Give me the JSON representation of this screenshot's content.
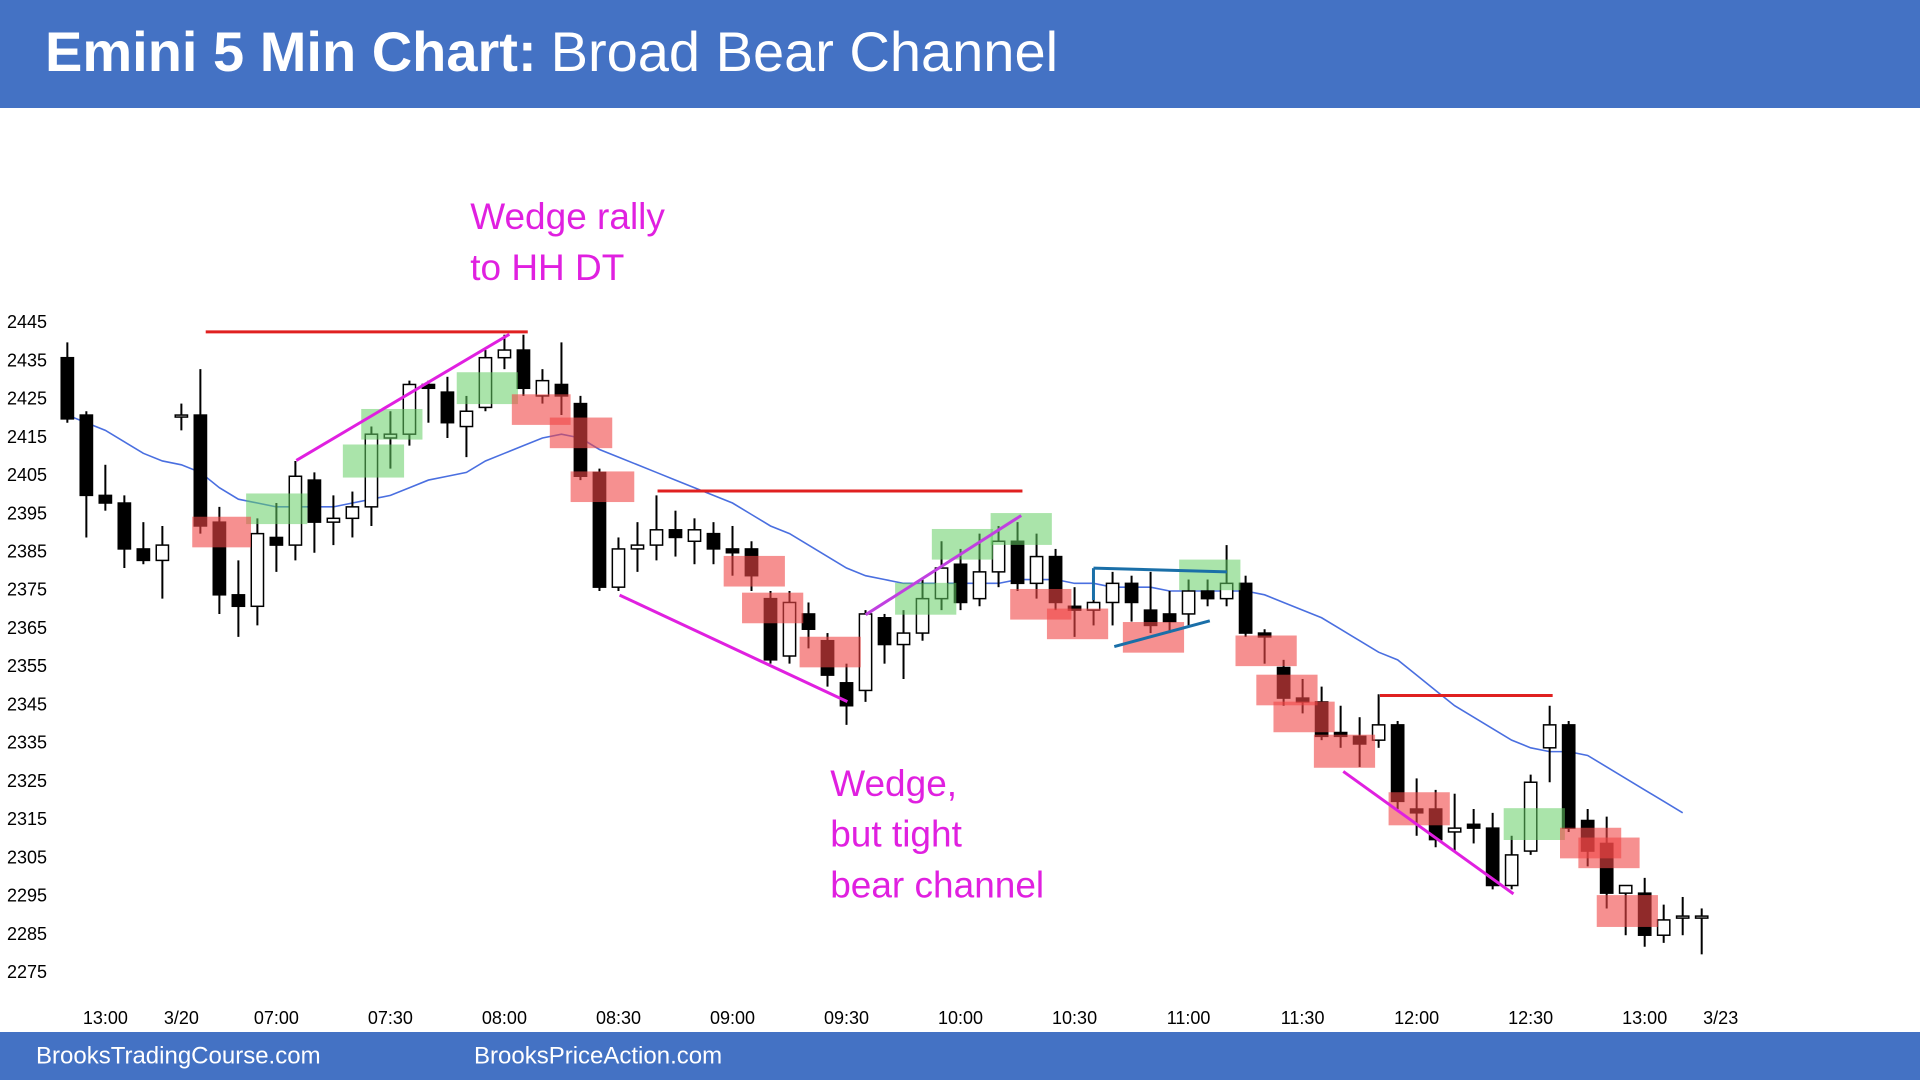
{
  "chart_data": {
    "type": "candlestick",
    "title": "Emini 5 Min Chart:",
    "subtitle": "Broad Bear Channel",
    "categories": [
      null,
      null,
      "13:00",
      null,
      null,
      null,
      "3/20",
      null,
      null,
      null,
      null,
      "07:00",
      null,
      null,
      null,
      null,
      null,
      "07:30",
      null,
      null,
      null,
      null,
      null,
      "08:00",
      null,
      null,
      null,
      null,
      null,
      "08:30",
      null,
      null,
      null,
      null,
      null,
      "09:00",
      null,
      null,
      null,
      null,
      null,
      "09:30",
      null,
      null,
      null,
      null,
      null,
      "10:00",
      null,
      null,
      null,
      null,
      null,
      "10:30",
      null,
      null,
      null,
      null,
      null,
      "11:00",
      null,
      null,
      null,
      null,
      null,
      "11:30",
      null,
      null,
      null,
      null,
      null,
      "12:00",
      null,
      null,
      null,
      null,
      null,
      "12:30",
      null,
      null,
      null,
      null,
      null,
      "13:00",
      null,
      null,
      null,
      "3/23"
    ],
    "open": [
      2436,
      2421,
      2400,
      2398,
      2386,
      2383,
      2421,
      2421,
      2393,
      2374,
      2371,
      2389,
      2387,
      2404,
      2393,
      2394,
      2397,
      2415,
      2416,
      2429,
      2427,
      2418,
      2423,
      2436,
      2438,
      2426,
      2429,
      2424,
      2406,
      2376,
      2386,
      2387,
      2391,
      2388,
      2390,
      2386,
      2386,
      2373,
      2358,
      2369,
      2362,
      2351,
      2349,
      2368,
      2361,
      2364,
      2373,
      2382,
      2373,
      2380,
      2388,
      2377,
      2384,
      2371,
      2370,
      2372,
      2377,
      2370,
      2369,
      2369,
      2375,
      2373,
      2377,
      2364,
      2355,
      2347,
      2346,
      2338,
      2337,
      2336,
      2340,
      2318,
      2318,
      2312,
      2314,
      2313,
      2298,
      2307,
      2334,
      2340,
      2315,
      2309,
      2296,
      2296,
      2285,
      2290,
      2290,
      null
    ],
    "high": [
      2440,
      2422,
      2408,
      2400,
      2393,
      2392,
      2424,
      2433,
      2397,
      2383,
      2394,
      2398,
      2409,
      2406,
      2400,
      2401,
      2418,
      2422,
      2430,
      2430,
      2431,
      2426,
      2438,
      2442,
      2442,
      2433,
      2440,
      2426,
      2407,
      2389,
      2393,
      2400,
      2396,
      2394,
      2393,
      2392,
      2388,
      2375,
      2375,
      2372,
      2364,
      2356,
      2370,
      2369,
      2370,
      2378,
      2388,
      2386,
      2390,
      2392,
      2393,
      2390,
      2386,
      2376,
      2377,
      2380,
      2379,
      2380,
      2375,
      2378,
      2378,
      2387,
      2379,
      2365,
      2357,
      2352,
      2350,
      2345,
      2342,
      2348,
      2341,
      2326,
      2323,
      2322,
      2318,
      2317,
      2311,
      2327,
      2345,
      2341,
      2318,
      2316,
      2298,
      2300,
      2293,
      2295,
      2292,
      null
    ],
    "low": [
      2419,
      2389,
      2396,
      2381,
      2382,
      2373,
      2417,
      2390,
      2369,
      2363,
      2366,
      2380,
      2383,
      2385,
      2387,
      2389,
      2392,
      2407,
      2413,
      2419,
      2415,
      2410,
      2422,
      2433,
      2426,
      2424,
      2421,
      2404,
      2375,
      2375,
      2380,
      2383,
      2384,
      2382,
      2382,
      2379,
      2375,
      2356,
      2356,
      2360,
      2350,
      2340,
      2346,
      2356,
      2352,
      2362,
      2370,
      2370,
      2371,
      2376,
      2375,
      2373,
      2370,
      2363,
      2366,
      2366,
      2367,
      2364,
      2364,
      2366,
      2371,
      2371,
      2363,
      2356,
      2345,
      2343,
      2336,
      2334,
      2329,
      2334,
      2318,
      2311,
      2308,
      2307,
      2309,
      2297,
      2297,
      2306,
      2325,
      2312,
      2303,
      2292,
      2285,
      2282,
      2283,
      2285,
      2280,
      null
    ],
    "close": [
      2420,
      2400,
      2398,
      2386,
      2383,
      2387,
      2421,
      2392,
      2374,
      2371,
      2390,
      2387,
      2405,
      2393,
      2394,
      2397,
      2416,
      2416,
      2429,
      2428,
      2419,
      2422,
      2436,
      2438,
      2428,
      2430,
      2426,
      2405,
      2376,
      2386,
      2387,
      2391,
      2389,
      2391,
      2386,
      2385,
      2379,
      2357,
      2372,
      2365,
      2353,
      2345,
      2369,
      2361,
      2364,
      2373,
      2381,
      2372,
      2380,
      2388,
      2377,
      2384,
      2372,
      2370,
      2372,
      2377,
      2372,
      2366,
      2367,
      2375,
      2373,
      2377,
      2364,
      2363,
      2347,
      2346,
      2337,
      2337,
      2335,
      2340,
      2320,
      2317,
      2310,
      2313,
      2313,
      2298,
      2306,
      2325,
      2340,
      2313,
      2307,
      2296,
      2298,
      2285,
      2289,
      2290,
      2290,
      null
    ],
    "ema": {
      "color": "#4a6fe0",
      "values": [
        2421,
        2419,
        2417,
        2414,
        2411,
        2409,
        2408,
        2406,
        2402,
        2399,
        2398,
        2397,
        2397,
        2397,
        2397,
        2398,
        2399,
        2400,
        2402,
        2404,
        2405,
        2406,
        2409,
        2411,
        2413,
        2415,
        2416,
        2415,
        2412,
        2410,
        2408,
        2406,
        2404,
        2402,
        2400,
        2398,
        2395,
        2392,
        2390,
        2387,
        2384,
        2381,
        2379,
        2378,
        2377,
        2377,
        2377,
        2377,
        2377,
        2377,
        2378,
        2378,
        2378,
        2377,
        2377,
        2376,
        2376,
        2376,
        2375,
        2375,
        2375,
        2375,
        2375,
        2374,
        2372,
        2370,
        2368,
        2365,
        2362,
        2359,
        2357,
        2353,
        2349,
        2345,
        2342,
        2339,
        2336,
        2334,
        2333,
        2333,
        2332,
        2329,
        2326,
        2323,
        2320,
        2317,
        null,
        null
      ]
    },
    "up_color": "#ffffff",
    "down_color": "#000000",
    "ylim": [
      2275,
      2445
    ],
    "yticks": [
      2275,
      2285,
      2295,
      2305,
      2315,
      2325,
      2335,
      2345,
      2355,
      2365,
      2375,
      2385,
      2395,
      2405,
      2415,
      2425,
      2435,
      2445
    ],
    "grid": false,
    "annotations": [
      {
        "lines": [
          "Wedge rally",
          "to HH DT"
        ],
        "color": "#e020e0"
      },
      {
        "lines": [
          "Wedge,",
          "but tight",
          "bear channel"
        ],
        "color": "#e020e0"
      }
    ],
    "footer": [
      "BrooksTradingCourse.com",
      "BrooksPriceAction.com"
    ]
  }
}
